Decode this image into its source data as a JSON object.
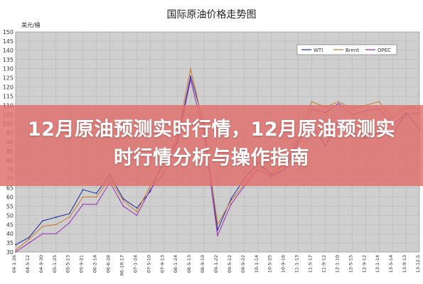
{
  "page": {
    "headline": "12月原油预测实时行情，12月原油预测实时行情分析与操作指南"
  },
  "chart_data": {
    "type": "line",
    "title": "国际原油价格走势图",
    "ylabel": "美元/桶",
    "ylim": [
      30,
      150
    ],
    "yticks": [
      30,
      35,
      40,
      45,
      50,
      55,
      60,
      65,
      70,
      75,
      80,
      85,
      90,
      95,
      100,
      105,
      110,
      115,
      120,
      125,
      130,
      135,
      140,
      145,
      150
    ],
    "grid": true,
    "legend_position": "top-right",
    "categories": [
      "04-1-26",
      "04-5-12",
      "04-9-30",
      "05-1-25",
      "05-5-13",
      "05-9-21",
      "06-2-14",
      "06-6-28",
      "06-10-17",
      "07-1-24",
      "07-5-10",
      "07-9-13",
      "08-1-24",
      "08-5-13",
      "08-9-19",
      "09-1-22",
      "09-5-12",
      "09-9-22",
      "10-1-14",
      "10-5-25",
      "10-9-16",
      "11-1-13",
      "11-5-17",
      "11-9-12",
      "12-1-10",
      "12-5-15",
      "12-9-12",
      "13-1-14",
      "13-5-14",
      "13-9-13",
      "13-12-5"
    ],
    "colors": {
      "WTI": "#1a2a9c",
      "Brent": "#c9782e",
      "OPEC": "#9a2bb0"
    },
    "series": [
      {
        "name": "WTI",
        "values": [
          34,
          38,
          47,
          49,
          51,
          64,
          62,
          72,
          59,
          54,
          63,
          80,
          90,
          126,
          100,
          42,
          59,
          70,
          79,
          72,
          75,
          90,
          100,
          88,
          101,
          95,
          92,
          95,
          94,
          106,
          97
        ]
      },
      {
        "name": "Brent",
        "values": [
          31,
          37,
          44,
          45,
          49,
          60,
          60,
          70,
          58,
          52,
          66,
          77,
          93,
          130,
          98,
          45,
          58,
          67,
          77,
          73,
          78,
          96,
          112,
          109,
          112,
          108,
          110,
          112,
          103,
          109,
          108
        ]
      },
      {
        "name": "OPEC",
        "values": [
          30,
          35,
          40,
          40,
          46,
          56,
          56,
          68,
          55,
          50,
          64,
          73,
          89,
          124,
          94,
          39,
          56,
          66,
          75,
          71,
          75,
          93,
          108,
          106,
          111,
          105,
          107,
          108,
          100,
          105,
          106
        ]
      }
    ]
  }
}
